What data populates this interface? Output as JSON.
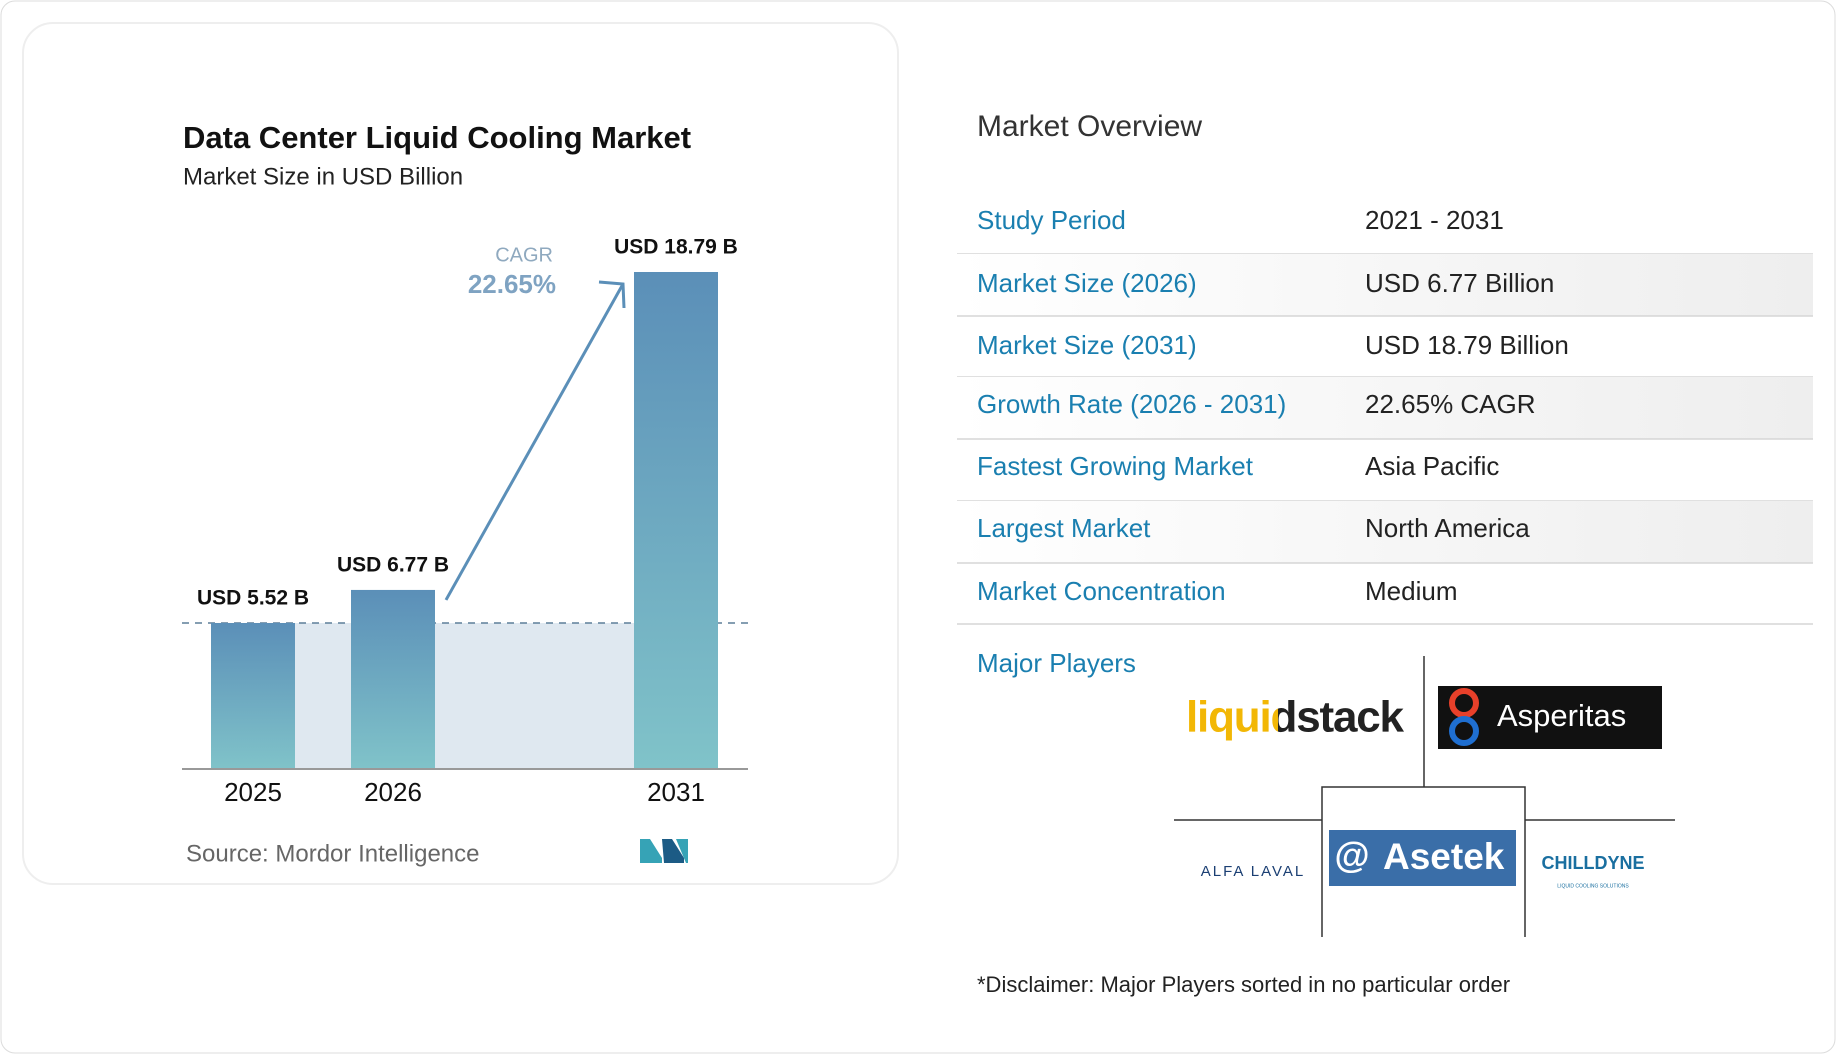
{
  "chart_data": {
    "type": "bar",
    "title": "Data Center Liquid Cooling Market",
    "subtitle": "Market Size in USD Billion",
    "categories": [
      "2025",
      "2026",
      "2031"
    ],
    "values": [
      5.52,
      6.77,
      18.79
    ],
    "value_labels": [
      "USD 5.52 B",
      "USD 6.77 B",
      "USD 18.79 B"
    ],
    "color": "#5b8fb8",
    "annotation": {
      "label": "CAGR",
      "value": "22.65%"
    },
    "source": "Source:  Mordor Intelligence"
  },
  "overview": {
    "title": "Market Overview",
    "rows": [
      [
        "Study Period",
        "2021 - 2031"
      ],
      [
        "Market Size (2026)",
        "USD 6.77 Billion"
      ],
      [
        "Market Size (2031)",
        "USD 18.79 Billion"
      ],
      [
        "Growth Rate (2026 - 2031)",
        "22.65% CAGR"
      ],
      [
        "Fastest Growing Market",
        "Asia Pacific"
      ],
      [
        "Largest Market",
        "North America"
      ],
      [
        "Market Concentration",
        "Medium"
      ]
    ]
  },
  "major_players": {
    "title": "Major Players",
    "players": [
      {
        "name": "liquidstack"
      },
      {
        "name": "Asperitas"
      },
      {
        "name": "Asetek"
      },
      {
        "name": "ALFA LAVAL"
      },
      {
        "name": "CHILLDYNE",
        "tagline": "LIQUID COOLING SOLUTIONS"
      }
    ]
  },
  "disclaimer": "*Disclaimer: Major Players sorted in no particular order"
}
